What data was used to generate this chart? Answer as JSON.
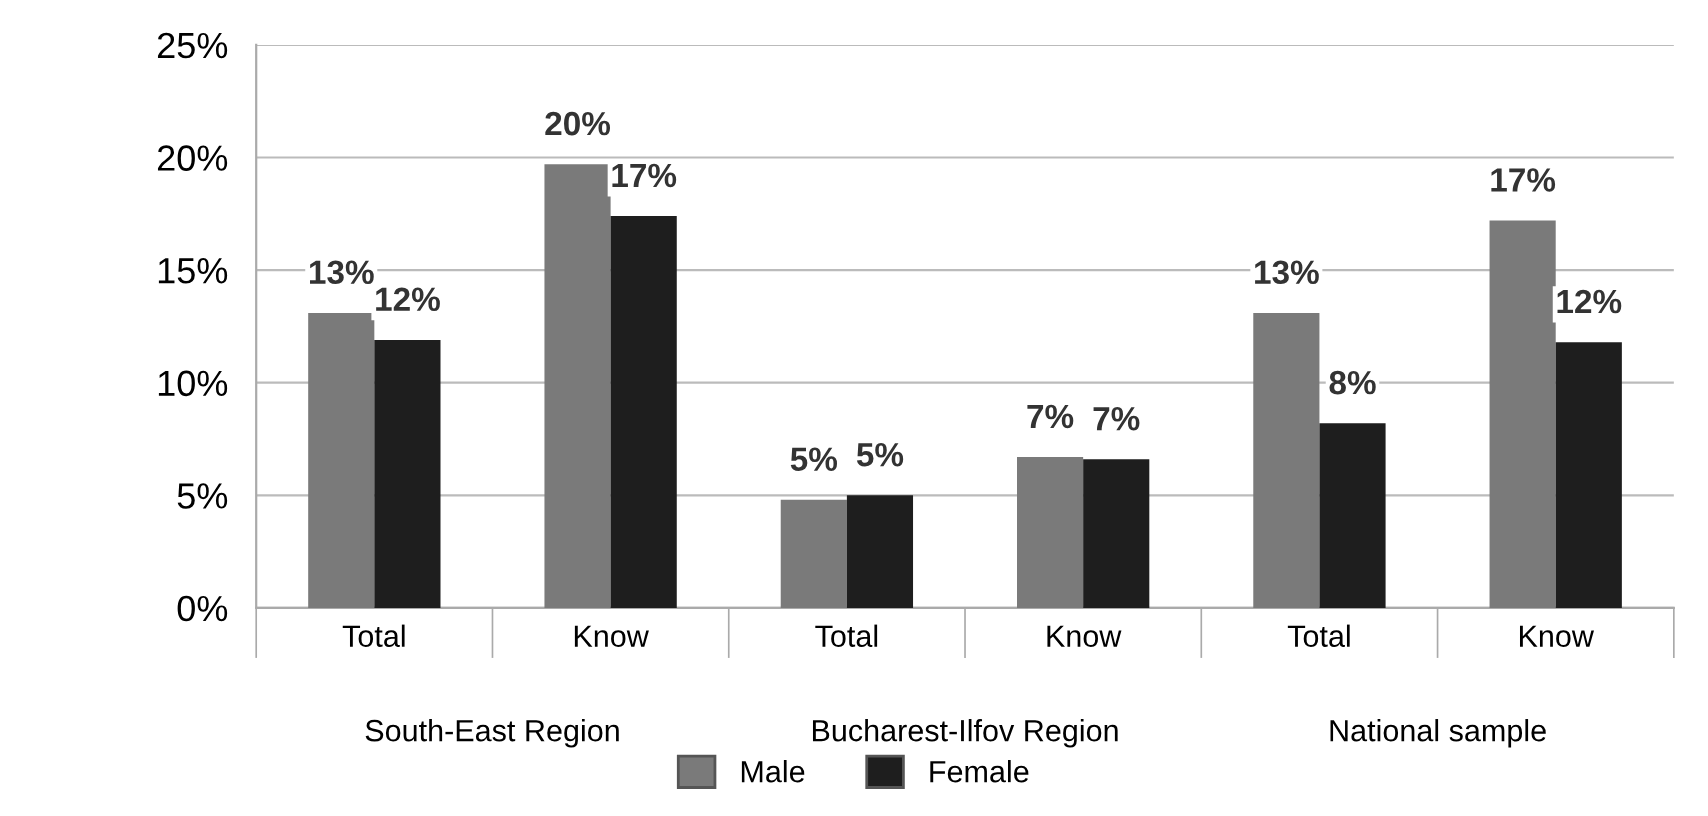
{
  "chart_data": {
    "type": "bar",
    "categories": [
      "Total",
      "Know",
      "Total",
      "Know",
      "Total",
      "Know"
    ],
    "series": [
      {
        "name": "Male",
        "color": "#7a7a7a",
        "values": [
          13.1,
          19.7,
          4.8,
          6.7,
          13.1,
          17.2
        ],
        "value_labels": [
          "13%",
          "20%",
          "5%",
          "7%",
          "13%",
          "17%"
        ]
      },
      {
        "name": "Female",
        "color": "#1e1e1e",
        "values": [
          11.9,
          17.4,
          5.0,
          6.6,
          8.2,
          11.8
        ],
        "value_labels": [
          "12%",
          "17%",
          "5%",
          "7%",
          "8%",
          "12%"
        ]
      }
    ],
    "annotations": [
      "South-East Region",
      "Bucharest-Ilfov Region",
      "National sample"
    ],
    "ylim": [
      0,
      25
    ],
    "yticks": [
      {
        "value": 0,
        "label": "0%"
      },
      {
        "value": 5,
        "label": "5%"
      },
      {
        "value": 10,
        "label": "10%"
      },
      {
        "value": 15,
        "label": "15%"
      },
      {
        "value": 20,
        "label": "20%"
      },
      {
        "value": 25,
        "label": "25%"
      }
    ],
    "grid": "y",
    "legend": "bottom"
  }
}
